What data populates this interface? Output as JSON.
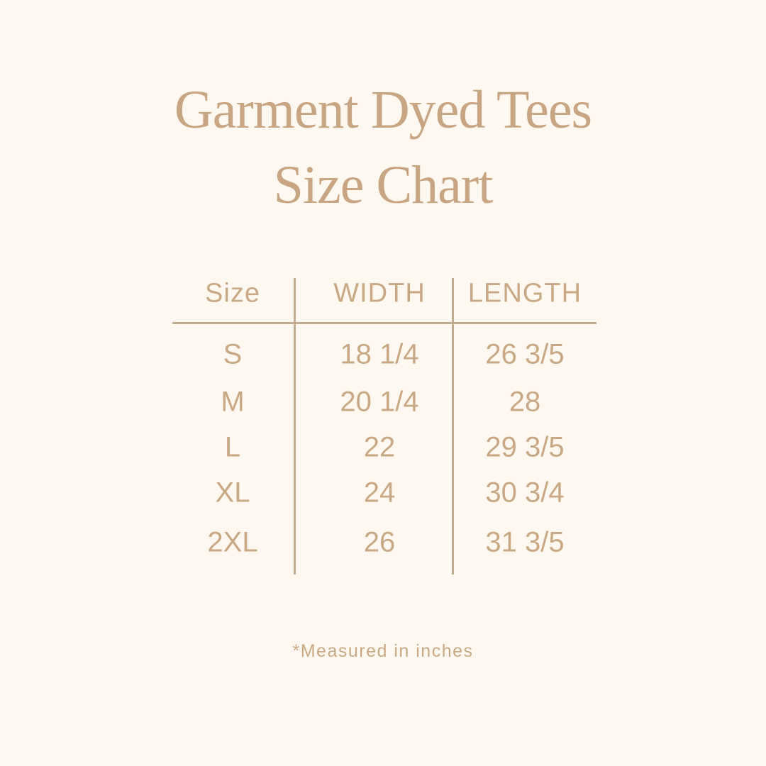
{
  "title": {
    "line1": "Garment Dyed Tees",
    "line2": "Size Chart"
  },
  "table": {
    "headers": [
      "Size",
      "WIDTH",
      "LENGTH"
    ],
    "rows": [
      [
        "S",
        "18 1/4",
        "26 3/5"
      ],
      [
        "M",
        "20 1/4",
        "28"
      ],
      [
        "L",
        "22",
        "29 3/5"
      ],
      [
        "XL",
        "24",
        "30 3/4"
      ],
      [
        "2XL",
        "26",
        "31 3/5"
      ]
    ]
  },
  "note": "*Measured in inches",
  "colors": {
    "background": "#fef8f0",
    "text": "#c9a985",
    "lines": "#c2ab93"
  }
}
